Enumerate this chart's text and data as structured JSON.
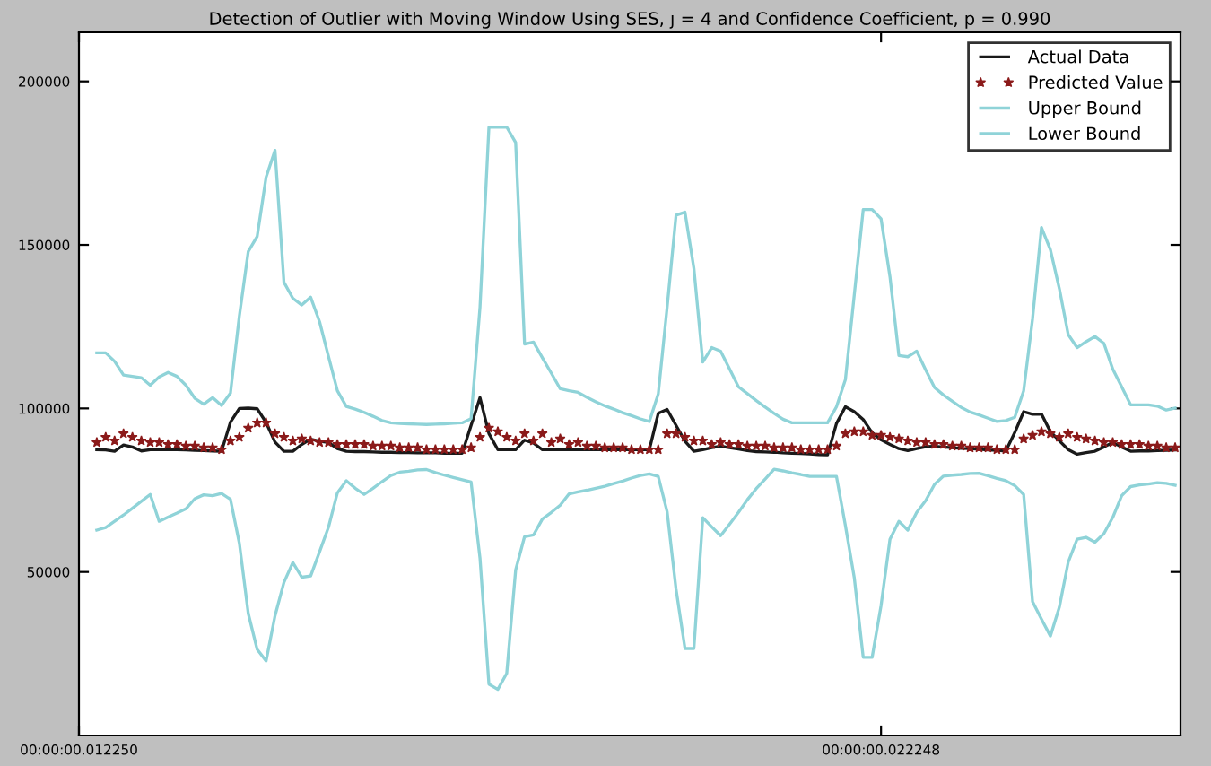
{
  "chart_data": {
    "type": "line",
    "title": "Detection of Outlier with Moving Window Using SES, ȷ = 4 and Confidence Coefficient, p = 0.990",
    "categories": [
      "00:00:00.012250",
      null,
      null,
      null,
      null,
      null,
      null,
      null,
      null,
      null,
      null,
      null,
      null,
      null,
      null,
      null,
      null,
      null,
      null,
      null,
      null,
      null,
      null,
      null,
      null,
      null,
      null,
      null,
      null,
      null,
      null,
      null,
      null,
      null,
      null,
      null,
      null,
      null,
      null,
      null,
      null,
      null,
      null,
      null,
      null,
      null,
      null,
      null,
      null,
      null,
      null,
      null,
      null,
      null,
      null,
      null,
      null,
      null,
      null,
      null,
      null,
      null,
      null,
      null,
      null,
      null,
      null,
      null,
      null,
      null,
      null,
      null,
      null,
      null,
      null,
      null,
      null,
      null,
      null,
      null,
      null,
      null,
      null,
      null,
      null,
      null,
      null,
      null,
      null,
      null,
      "00:00:00.022248",
      null,
      null,
      null,
      null,
      null,
      null,
      null,
      null,
      null,
      null,
      null,
      null,
      null,
      null,
      null,
      null,
      null,
      null,
      null,
      null,
      null,
      null,
      null,
      null,
      null,
      null,
      null,
      null,
      null,
      null,
      null,
      null,
      null
    ],
    "ylim": [
      0,
      215000
    ],
    "yticks": [
      50000,
      100000,
      150000,
      200000
    ],
    "grid": false,
    "legend": "top right",
    "series": [
      {
        "name": "Actual Data",
        "type": "line",
        "color": "#1a1a1a",
        "values": [
          null,
          null,
          87400,
          87300,
          86900,
          88800,
          88200,
          87000,
          87400,
          87400,
          87400,
          87400,
          87300,
          87200,
          87100,
          87000,
          86900,
          95800,
          100000,
          100100,
          99900,
          95700,
          89700,
          86900,
          86900,
          89000,
          90600,
          90000,
          89600,
          87700,
          86900,
          86800,
          86800,
          86700,
          86600,
          86600,
          86500,
          86500,
          86400,
          86400,
          86400,
          86300,
          86300,
          86300,
          94800,
          103300,
          92300,
          87400,
          87400,
          87400,
          90300,
          89400,
          87400,
          87400,
          87400,
          87400,
          87400,
          87400,
          87400,
          87400,
          87400,
          87400,
          87400,
          87400,
          87400,
          98500,
          99700,
          94800,
          90000,
          86900,
          87400,
          88000,
          88500,
          88000,
          87600,
          87100,
          86800,
          86700,
          86600,
          86400,
          86300,
          86200,
          86100,
          85900,
          85800,
          95400,
          100500,
          99000,
          96600,
          92600,
          90400,
          89000,
          87700,
          87100,
          87700,
          88300,
          88400,
          88200,
          88000,
          87800,
          87700,
          87500,
          87300,
          87200,
          87000,
          92600,
          99000,
          98200,
          98300,
          92900,
          90100,
          87400,
          86000,
          86500,
          86900,
          88200,
          89600,
          88200,
          86900,
          87000,
          87000,
          87100,
          87200,
          87300
        ]
      },
      {
        "name": "Predicted Value",
        "type": "scatter",
        "marker": "star",
        "color": "#8b1a1a",
        "values": [
          null,
          null,
          89600,
          91200,
          90100,
          92300,
          91200,
          90100,
          89600,
          89600,
          89000,
          89000,
          88500,
          88500,
          88000,
          88000,
          87400,
          90100,
          91200,
          94000,
          95600,
          95600,
          92300,
          91200,
          90100,
          90700,
          90100,
          89600,
          89600,
          89000,
          89000,
          89000,
          89000,
          88500,
          88500,
          88500,
          88000,
          88000,
          88000,
          87400,
          87400,
          87400,
          87400,
          87400,
          88000,
          91200,
          94000,
          92900,
          91200,
          90100,
          92300,
          90100,
          92300,
          89600,
          90700,
          89000,
          89600,
          88500,
          88500,
          88000,
          88000,
          88000,
          87400,
          87400,
          87400,
          87400,
          92300,
          92300,
          91200,
          90100,
          90100,
          89000,
          89600,
          89000,
          89000,
          88500,
          88500,
          88500,
          88000,
          88000,
          88000,
          87400,
          87400,
          87400,
          87400,
          88500,
          92300,
          92900,
          92900,
          91800,
          91800,
          91200,
          90700,
          90100,
          89600,
          89600,
          89000,
          89000,
          88500,
          88500,
          88000,
          88000,
          88000,
          87400,
          87400,
          87400,
          90700,
          91800,
          92900,
          92300,
          91200,
          92300,
          91200,
          90700,
          90100,
          89600,
          89600,
          89000,
          89000,
          89000,
          88500,
          88500,
          88000,
          88000
        ]
      },
      {
        "name": "Upper Bound",
        "type": "line",
        "color": "#8fd3d8",
        "values": [
          null,
          null,
          117000,
          117000,
          114400,
          110200,
          109800,
          109400,
          107100,
          109600,
          111000,
          109800,
          107100,
          103100,
          101300,
          103300,
          100900,
          104700,
          128300,
          148000,
          152600,
          170700,
          178900,
          138600,
          133700,
          131600,
          134000,
          126500,
          115900,
          105400,
          100600,
          99800,
          98800,
          97600,
          96300,
          95600,
          95400,
          95300,
          95200,
          95100,
          95200,
          95300,
          95500,
          95600,
          96900,
          131000,
          186000,
          186000,
          186000,
          181300,
          119700,
          120300,
          115500,
          110800,
          106000,
          105400,
          104900,
          103400,
          102000,
          100800,
          99800,
          98700,
          97800,
          96800,
          96000,
          104400,
          131000,
          159100,
          160000,
          142800,
          114200,
          118600,
          117500,
          112100,
          106600,
          104500,
          102400,
          100400,
          98500,
          96700,
          95600,
          95600,
          95600,
          95600,
          95600,
          100500,
          108800,
          134800,
          160800,
          160800,
          158000,
          140300,
          116200,
          115800,
          117500,
          111800,
          106400,
          104100,
          102200,
          100300,
          98900,
          98000,
          97000,
          96000,
          96300,
          97300,
          105400,
          127400,
          155300,
          148500,
          136700,
          122600,
          118600,
          120400,
          122000,
          119900,
          112000,
          106600,
          101100,
          101100,
          101100,
          100700,
          99500,
          100100
        ]
      },
      {
        "name": "Lower Bound",
        "type": "line",
        "color": "#8fd3d8",
        "values": [
          null,
          null,
          62800,
          63600,
          65500,
          67400,
          69500,
          71600,
          73700,
          65500,
          66800,
          68000,
          69300,
          72400,
          73600,
          73300,
          74000,
          72200,
          58800,
          37300,
          26300,
          22800,
          36600,
          46800,
          52900,
          48400,
          48800,
          56200,
          63700,
          74200,
          77900,
          75600,
          73700,
          75600,
          77600,
          79500,
          80500,
          80800,
          81200,
          81300,
          80400,
          79600,
          78900,
          78200,
          77500,
          54200,
          15700,
          14100,
          19000,
          50600,
          60800,
          61300,
          66200,
          68200,
          70400,
          73900,
          74500,
          75000,
          75600,
          76200,
          77000,
          77800,
          78700,
          79500,
          80000,
          79200,
          68400,
          44700,
          26600,
          26600,
          66600,
          63800,
          61100,
          64600,
          68200,
          72100,
          75500,
          78400,
          81400,
          80900,
          80300,
          79800,
          79200,
          79200,
          79200,
          79200,
          64200,
          48200,
          23900,
          23900,
          39700,
          60000,
          65500,
          62800,
          68200,
          71800,
          76800,
          79300,
          79600,
          79800,
          80100,
          80200,
          79400,
          78600,
          77900,
          76400,
          73700,
          40900,
          35600,
          30400,
          39200,
          53000,
          60000,
          60600,
          59100,
          61700,
          66700,
          73300,
          76100,
          76600,
          76900,
          77300,
          77100,
          76500
        ]
      }
    ]
  }
}
